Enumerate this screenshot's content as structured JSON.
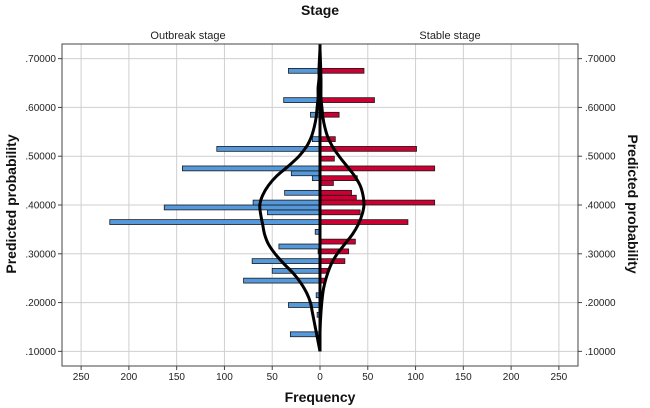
{
  "chart_data": {
    "type": "bar",
    "orientation": "horizontal-back-to-back",
    "title": "Stage",
    "xlabel": "Frequency",
    "ylabel_left": "Predicted probability",
    "ylabel_right": "Predicted probability",
    "panels": [
      "Outbreak stage",
      "Stable stage"
    ],
    "x_ticks_left": [
      "250",
      "200",
      "150",
      "100",
      "50",
      "0"
    ],
    "x_ticks_right": [
      "50",
      "100",
      "150",
      "200",
      "250"
    ],
    "xlim": [
      0,
      270
    ],
    "y_ticks": [
      ".10000",
      ".20000",
      ".30000",
      ".40000",
      ".50000",
      ".60000",
      ".70000"
    ],
    "y_tick_values": [
      0.1,
      0.2,
      0.3,
      0.4,
      0.5,
      0.6,
      0.7
    ],
    "ylim": [
      0.07,
      0.73
    ],
    "bin_width": 0.01,
    "grid": true,
    "colors": {
      "outbreak": "#5599dd",
      "stable": "#cc0033",
      "outline": "#1a1a1a",
      "curve": "#000000",
      "grid": "#cfcfcf"
    },
    "series": [
      {
        "name": "Outbreak stage",
        "bins": [
          {
            "y": 0.135,
            "value": 31
          },
          {
            "y": 0.175,
            "value": 3
          },
          {
            "y": 0.195,
            "value": 33
          },
          {
            "y": 0.215,
            "value": 4
          },
          {
            "y": 0.245,
            "value": 80
          },
          {
            "y": 0.265,
            "value": 50
          },
          {
            "y": 0.285,
            "value": 71
          },
          {
            "y": 0.305,
            "value": 2
          },
          {
            "y": 0.315,
            "value": 43
          },
          {
            "y": 0.345,
            "value": 5
          },
          {
            "y": 0.365,
            "value": 220
          },
          {
            "y": 0.385,
            "value": 55
          },
          {
            "y": 0.395,
            "value": 163
          },
          {
            "y": 0.405,
            "value": 70
          },
          {
            "y": 0.425,
            "value": 37
          },
          {
            "y": 0.455,
            "value": 8
          },
          {
            "y": 0.465,
            "value": 30
          },
          {
            "y": 0.475,
            "value": 144
          },
          {
            "y": 0.515,
            "value": 108
          },
          {
            "y": 0.535,
            "value": 8
          },
          {
            "y": 0.585,
            "value": 10
          },
          {
            "y": 0.615,
            "value": 38
          },
          {
            "y": 0.675,
            "value": 33
          }
        ]
      },
      {
        "name": "Stable stage",
        "bins": [
          {
            "y": 0.245,
            "value": 6
          },
          {
            "y": 0.265,
            "value": 8
          },
          {
            "y": 0.285,
            "value": 26
          },
          {
            "y": 0.305,
            "value": 30
          },
          {
            "y": 0.325,
            "value": 37
          },
          {
            "y": 0.365,
            "value": 92
          },
          {
            "y": 0.385,
            "value": 42
          },
          {
            "y": 0.405,
            "value": 120
          },
          {
            "y": 0.415,
            "value": 38
          },
          {
            "y": 0.425,
            "value": 33
          },
          {
            "y": 0.445,
            "value": 14
          },
          {
            "y": 0.455,
            "value": 39
          },
          {
            "y": 0.475,
            "value": 120
          },
          {
            "y": 0.495,
            "value": 15
          },
          {
            "y": 0.515,
            "value": 101
          },
          {
            "y": 0.535,
            "value": 16
          },
          {
            "y": 0.585,
            "value": 20
          },
          {
            "y": 0.615,
            "value": 57
          },
          {
            "y": 0.675,
            "value": 46
          }
        ]
      }
    ],
    "density_curves": [
      {
        "name": "Outbreak stage",
        "points": [
          [
            0.1,
            0
          ],
          [
            0.12,
            2
          ],
          [
            0.14,
            4
          ],
          [
            0.16,
            6
          ],
          [
            0.18,
            8
          ],
          [
            0.2,
            10
          ],
          [
            0.22,
            14
          ],
          [
            0.24,
            20
          ],
          [
            0.26,
            28
          ],
          [
            0.28,
            38
          ],
          [
            0.3,
            47
          ],
          [
            0.32,
            54
          ],
          [
            0.34,
            58
          ],
          [
            0.36,
            60
          ],
          [
            0.38,
            62
          ],
          [
            0.4,
            63
          ],
          [
            0.42,
            60
          ],
          [
            0.44,
            54
          ],
          [
            0.46,
            45
          ],
          [
            0.48,
            33
          ],
          [
            0.5,
            22
          ],
          [
            0.52,
            14
          ],
          [
            0.54,
            9
          ],
          [
            0.56,
            6
          ],
          [
            0.58,
            4
          ],
          [
            0.6,
            3
          ],
          [
            0.62,
            2
          ],
          [
            0.64,
            2
          ],
          [
            0.66,
            1
          ],
          [
            0.68,
            1
          ],
          [
            0.72,
            0
          ]
        ]
      },
      {
        "name": "Stable stage",
        "points": [
          [
            0.1,
            0
          ],
          [
            0.14,
            0
          ],
          [
            0.18,
            1
          ],
          [
            0.22,
            3
          ],
          [
            0.24,
            5
          ],
          [
            0.26,
            8
          ],
          [
            0.28,
            12
          ],
          [
            0.3,
            18
          ],
          [
            0.32,
            26
          ],
          [
            0.34,
            34
          ],
          [
            0.36,
            40
          ],
          [
            0.38,
            44
          ],
          [
            0.4,
            46
          ],
          [
            0.42,
            45
          ],
          [
            0.44,
            42
          ],
          [
            0.46,
            36
          ],
          [
            0.48,
            28
          ],
          [
            0.5,
            20
          ],
          [
            0.52,
            13
          ],
          [
            0.54,
            8
          ],
          [
            0.56,
            5
          ],
          [
            0.58,
            3
          ],
          [
            0.6,
            2
          ],
          [
            0.62,
            1
          ],
          [
            0.66,
            1
          ],
          [
            0.72,
            0
          ]
        ]
      }
    ]
  }
}
